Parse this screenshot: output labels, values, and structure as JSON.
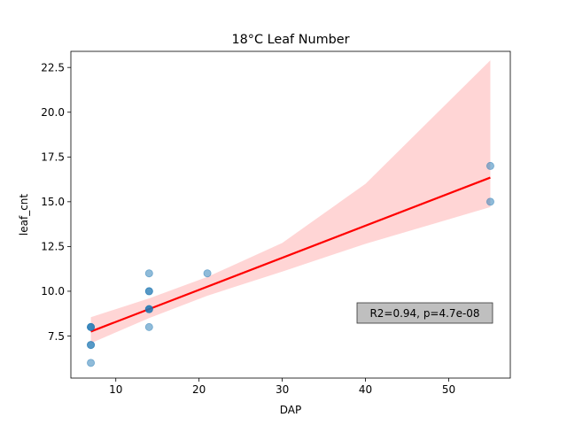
{
  "chart_data": {
    "type": "scatter",
    "title": "18°C Leaf Number",
    "xlabel": "DAP",
    "ylabel": "leaf_cnt",
    "xlim": [
      4.6,
      57.4
    ],
    "ylim": [
      5.15,
      23.4
    ],
    "xticks": [
      10,
      20,
      30,
      40,
      50
    ],
    "yticks": [
      7.5,
      10.0,
      12.5,
      15.0,
      17.5,
      20.0,
      22.5
    ],
    "ytick_labels": [
      "7.5",
      "10.0",
      "12.5",
      "15.0",
      "17.5",
      "20.0",
      "22.5"
    ],
    "grid": false,
    "points": {
      "color": "#1f77b4",
      "x": [
        7,
        7,
        7,
        7,
        7,
        7,
        14,
        14,
        14,
        14,
        14,
        14,
        14,
        21,
        55,
        55
      ],
      "y": [
        6,
        7,
        7,
        8,
        8,
        8,
        8,
        9,
        9,
        9,
        10,
        10,
        11,
        11,
        15,
        17
      ]
    },
    "regression": {
      "color": "#ff0000",
      "x": [
        7,
        55
      ],
      "y": [
        7.75,
        16.35
      ],
      "ci_color": "#ffb3b3",
      "ci_upper": [
        [
          7,
          8.55
        ],
        [
          14,
          9.6
        ],
        [
          21,
          10.8
        ],
        [
          30,
          12.7
        ],
        [
          40,
          16.0
        ],
        [
          55,
          22.9
        ]
      ],
      "ci_lower": [
        [
          7,
          7.1
        ],
        [
          14,
          8.5
        ],
        [
          21,
          9.75
        ],
        [
          30,
          11.1
        ],
        [
          40,
          12.65
        ],
        [
          55,
          14.7
        ]
      ]
    },
    "annotation": {
      "text": "R2=0.94, p=4.7e-08",
      "background": "#bfbfbf"
    }
  }
}
